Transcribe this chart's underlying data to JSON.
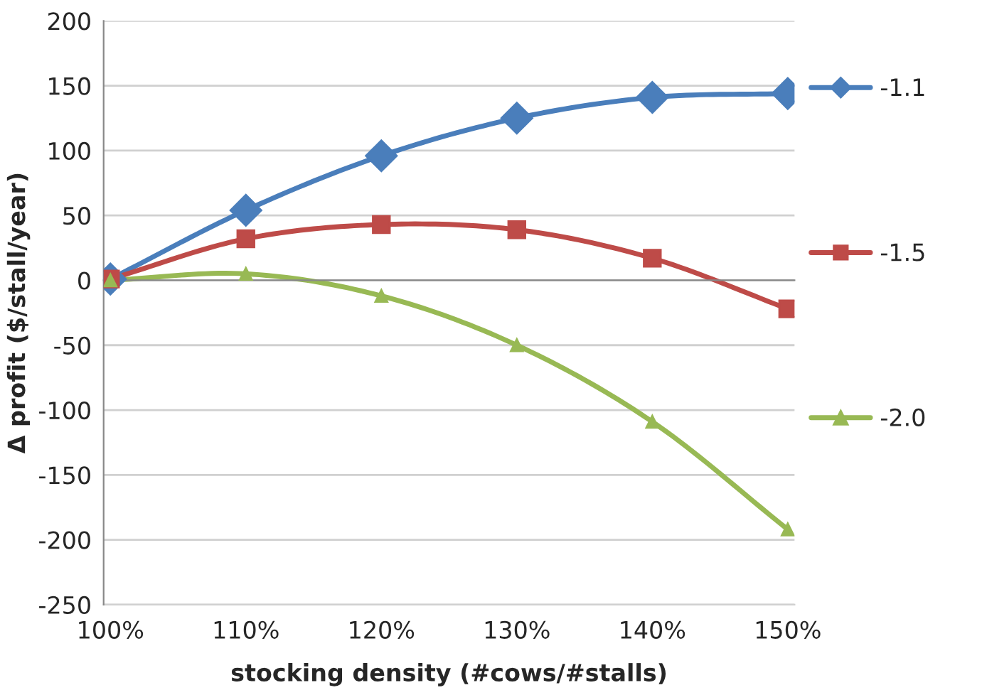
{
  "chart_data": {
    "type": "line",
    "xlabel": "stocking density (#cows/#stalls)",
    "ylabel": "Δ profit ($/stall/year)",
    "categories": [
      "100%",
      "110%",
      "120%",
      "130%",
      "140%",
      "150%"
    ],
    "series": [
      {
        "name": "-1.1",
        "color": "#4a7ebb",
        "marker": "diamond",
        "values": [
          1,
          54,
          96,
          125,
          141,
          144
        ]
      },
      {
        "name": "-1.5",
        "color": "#be4b48",
        "marker": "square",
        "values": [
          1,
          32,
          43,
          39,
          17,
          -22
        ]
      },
      {
        "name": "-2.0",
        "color": "#98b954",
        "marker": "triangle",
        "values": [
          0,
          5,
          -12,
          -50,
          -109,
          -192
        ]
      }
    ],
    "ylim": [
      -250,
      200
    ],
    "yticks": [
      -250,
      -200,
      -150,
      -100,
      -50,
      0,
      50,
      100,
      150,
      200
    ],
    "grid": "y",
    "legend": "right",
    "line_style": "solid"
  }
}
